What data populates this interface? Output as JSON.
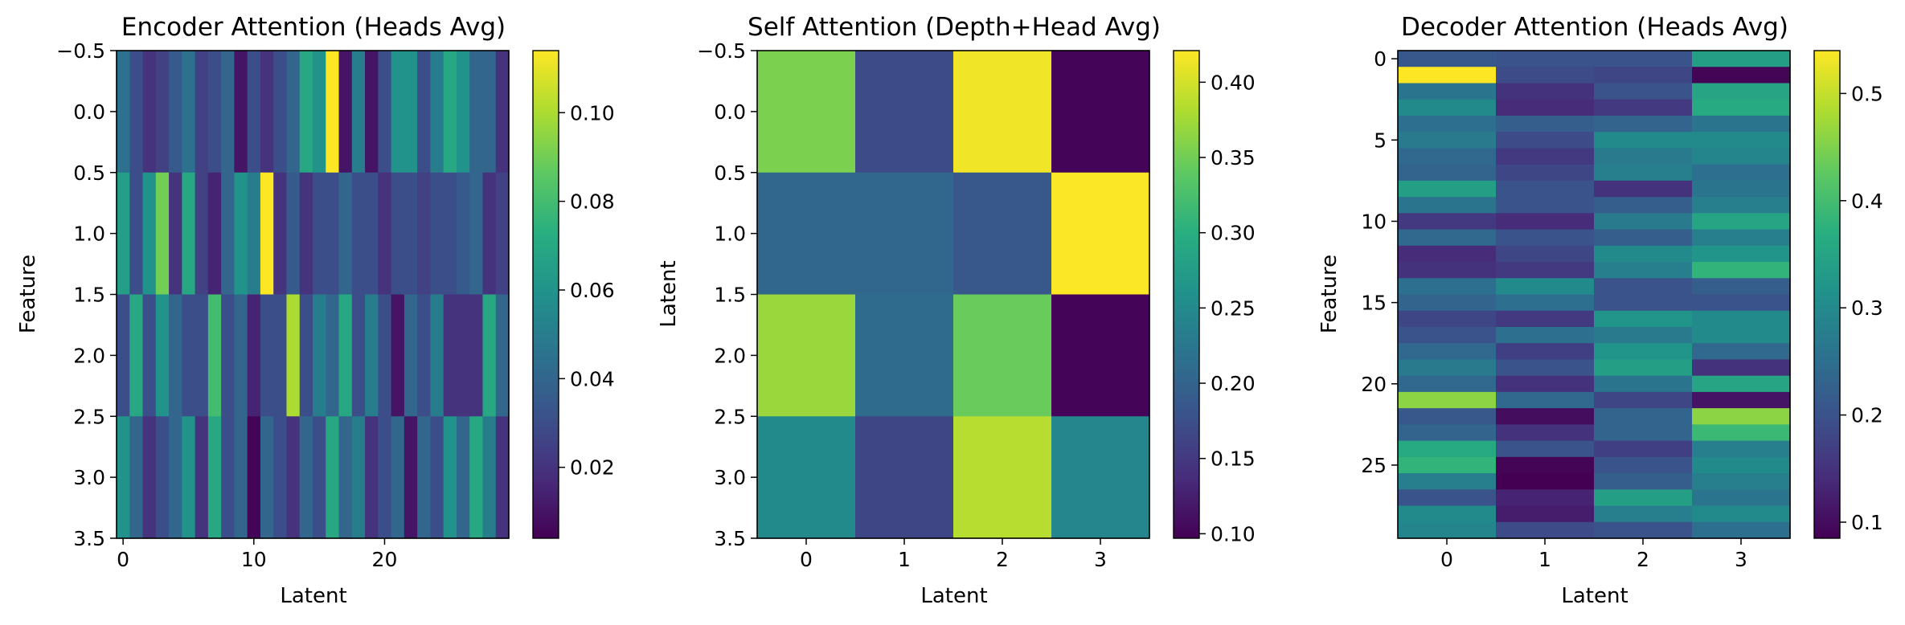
{
  "chart_data": [
    {
      "type": "heatmap",
      "title": "Encoder Attention (Heads Avg)",
      "xlabel": "Latent",
      "ylabel": "Feature",
      "x_ticks": [
        "0",
        "10",
        "20"
      ],
      "y_ticks": [
        "−0.5",
        "0.0",
        "0.5",
        "1.0",
        "1.5",
        "2.0",
        "2.5",
        "3.0",
        "3.5"
      ],
      "colorbar_ticks": [
        "0.02",
        "0.04",
        "0.06",
        "0.08",
        "0.10"
      ],
      "vmin": 0.004,
      "vmax": 0.114,
      "rows": 4,
      "cols": 30,
      "values": [
        [
          0.045,
          0.03,
          0.02,
          0.025,
          0.035,
          0.045,
          0.025,
          0.03,
          0.04,
          0.01,
          0.03,
          0.02,
          0.03,
          0.04,
          0.07,
          0.06,
          0.114,
          0.01,
          0.05,
          0.01,
          0.03,
          0.06,
          0.06,
          0.03,
          0.05,
          0.07,
          0.06,
          0.04,
          0.04,
          0.02
        ],
        [
          0.065,
          0.03,
          0.06,
          0.09,
          0.02,
          0.07,
          0.025,
          0.015,
          0.04,
          0.06,
          0.05,
          0.114,
          0.02,
          0.035,
          0.02,
          0.03,
          0.03,
          0.04,
          0.03,
          0.03,
          0.02,
          0.03,
          0.03,
          0.025,
          0.03,
          0.03,
          0.035,
          0.04,
          0.02,
          0.025
        ],
        [
          0.03,
          0.07,
          0.03,
          0.06,
          0.04,
          0.03,
          0.03,
          0.08,
          0.03,
          0.04,
          0.015,
          0.03,
          0.03,
          0.1,
          0.03,
          0.05,
          0.04,
          0.07,
          0.03,
          0.05,
          0.03,
          0.01,
          0.04,
          0.03,
          0.05,
          0.02,
          0.02,
          0.02,
          0.07,
          0.04
        ],
        [
          0.06,
          0.04,
          0.02,
          0.03,
          0.04,
          0.06,
          0.02,
          0.07,
          0.03,
          0.04,
          0.005,
          0.04,
          0.03,
          0.02,
          0.04,
          0.03,
          0.07,
          0.04,
          0.05,
          0.02,
          0.03,
          0.04,
          0.01,
          0.04,
          0.03,
          0.06,
          0.04,
          0.07,
          0.05,
          0.02
        ]
      ]
    },
    {
      "type": "heatmap",
      "title": "Self Attention (Depth+Head Avg)",
      "xlabel": "Latent",
      "ylabel": "Latent",
      "x_ticks": [
        "0",
        "1",
        "2",
        "3"
      ],
      "y_ticks": [
        "−0.5",
        "0.0",
        "0.5",
        "1.0",
        "1.5",
        "2.0",
        "2.5",
        "3.0",
        "3.5"
      ],
      "colorbar_ticks": [
        "0.10",
        "0.15",
        "0.20",
        "0.25",
        "0.30",
        "0.35",
        "0.40"
      ],
      "vmin": 0.097,
      "vmax": 0.421,
      "rows": 4,
      "cols": 4,
      "values": [
        [
          0.355,
          0.17,
          0.415,
          0.1
        ],
        [
          0.205,
          0.205,
          0.185,
          0.42
        ],
        [
          0.37,
          0.21,
          0.345,
          0.1
        ],
        [
          0.25,
          0.165,
          0.385,
          0.245
        ]
      ]
    },
    {
      "type": "heatmap",
      "title": "Decoder Attention (Heads Avg)",
      "xlabel": "Latent",
      "ylabel": "Feature",
      "x_ticks": [
        "0",
        "1",
        "2",
        "3"
      ],
      "y_ticks": [
        "0",
        "5",
        "10",
        "15",
        "20",
        "25"
      ],
      "colorbar_ticks": [
        "0.1",
        "0.2",
        "0.3",
        "0.4",
        "0.5"
      ],
      "vmin": 0.085,
      "vmax": 0.54,
      "rows": 30,
      "cols": 4,
      "values": [
        [
          0.21,
          0.2,
          0.2,
          0.34
        ],
        [
          0.54,
          0.19,
          0.18,
          0.09
        ],
        [
          0.26,
          0.15,
          0.2,
          0.35
        ],
        [
          0.3,
          0.14,
          0.16,
          0.36
        ],
        [
          0.25,
          0.22,
          0.23,
          0.26
        ],
        [
          0.27,
          0.19,
          0.3,
          0.3
        ],
        [
          0.24,
          0.16,
          0.27,
          0.29
        ],
        [
          0.23,
          0.18,
          0.28,
          0.25
        ],
        [
          0.34,
          0.2,
          0.15,
          0.26
        ],
        [
          0.26,
          0.2,
          0.22,
          0.28
        ],
        [
          0.16,
          0.14,
          0.27,
          0.35
        ],
        [
          0.24,
          0.2,
          0.22,
          0.28
        ],
        [
          0.14,
          0.18,
          0.3,
          0.32
        ],
        [
          0.15,
          0.16,
          0.28,
          0.38
        ],
        [
          0.25,
          0.3,
          0.2,
          0.22
        ],
        [
          0.23,
          0.25,
          0.2,
          0.2
        ],
        [
          0.18,
          0.16,
          0.32,
          0.3
        ],
        [
          0.2,
          0.25,
          0.27,
          0.3
        ],
        [
          0.24,
          0.17,
          0.32,
          0.24
        ],
        [
          0.27,
          0.2,
          0.34,
          0.15
        ],
        [
          0.24,
          0.15,
          0.26,
          0.35
        ],
        [
          0.46,
          0.24,
          0.18,
          0.11
        ],
        [
          0.21,
          0.1,
          0.23,
          0.46
        ],
        [
          0.23,
          0.15,
          0.23,
          0.39
        ],
        [
          0.36,
          0.2,
          0.17,
          0.28
        ],
        [
          0.38,
          0.09,
          0.2,
          0.3
        ],
        [
          0.28,
          0.085,
          0.22,
          0.28
        ],
        [
          0.2,
          0.13,
          0.34,
          0.26
        ],
        [
          0.3,
          0.12,
          0.28,
          0.3
        ],
        [
          0.29,
          0.19,
          0.2,
          0.25
        ]
      ]
    }
  ]
}
